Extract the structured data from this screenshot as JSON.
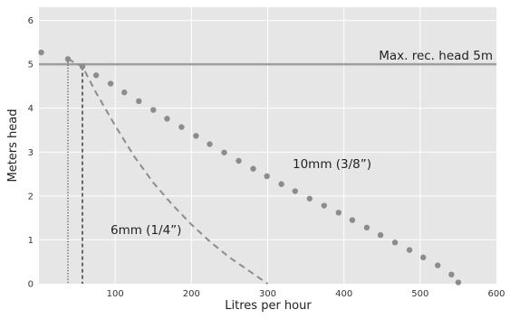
{
  "chart_data": {
    "type": "line",
    "xlabel": "Litres per hour",
    "ylabel": "Meters head",
    "xlim": [
      0,
      600
    ],
    "ylim": [
      0,
      6.3
    ],
    "x_ticks": [
      100,
      200,
      300,
      400,
      500,
      600
    ],
    "y_ticks": [
      0,
      1,
      2,
      3,
      4,
      5,
      6
    ],
    "grid": true,
    "reference_line": {
      "y": 5,
      "label": "Max. rec. head 5m"
    },
    "series": [
      {
        "name": "10mm (3/8”)",
        "style": "dotted",
        "label_position": {
          "x": 235,
          "y": 2.7
        },
        "points": [
          [
            3,
            5.27
          ],
          [
            38,
            5.12
          ],
          [
            57,
            4.95
          ],
          [
            75,
            4.75
          ],
          [
            94,
            4.56
          ],
          [
            112,
            4.36
          ],
          [
            131,
            4.16
          ],
          [
            150,
            3.96
          ],
          [
            168,
            3.76
          ],
          [
            187,
            3.57
          ],
          [
            206,
            3.37
          ],
          [
            224,
            3.18
          ],
          [
            243,
            2.99
          ],
          [
            262,
            2.8
          ],
          [
            281,
            2.62
          ],
          [
            299,
            2.45
          ],
          [
            318,
            2.27
          ],
          [
            336,
            2.11
          ],
          [
            355,
            1.94
          ],
          [
            374,
            1.78
          ],
          [
            393,
            1.62
          ],
          [
            411,
            1.45
          ],
          [
            430,
            1.28
          ],
          [
            448,
            1.11
          ],
          [
            467,
            0.94
          ],
          [
            486,
            0.77
          ],
          [
            504,
            0.6
          ],
          [
            523,
            0.42
          ],
          [
            541,
            0.21
          ],
          [
            550,
            0.03
          ]
        ]
      },
      {
        "name": "6mm (1/4”)",
        "style": "dashed",
        "label_position": {
          "x": -5,
          "y": 1.2
        },
        "points": [
          [
            38,
            5.12
          ],
          [
            57,
            4.95
          ],
          [
            75,
            4.35
          ],
          [
            100,
            3.6
          ],
          [
            125,
            2.9
          ],
          [
            150,
            2.3
          ],
          [
            175,
            1.8
          ],
          [
            200,
            1.35
          ],
          [
            225,
            0.95
          ],
          [
            250,
            0.6
          ],
          [
            275,
            0.3
          ],
          [
            300,
            0.0
          ]
        ]
      }
    ],
    "vertical_markers": [
      {
        "x": 38,
        "style": "dotted"
      },
      {
        "x": 57,
        "style": "dashed"
      }
    ],
    "colors": {
      "plot_background": "#e6e6e6",
      "grid": "#ffffff",
      "reference_line": "#9e9e9e",
      "series": "#8c8c8c",
      "markers": "#222222"
    }
  }
}
